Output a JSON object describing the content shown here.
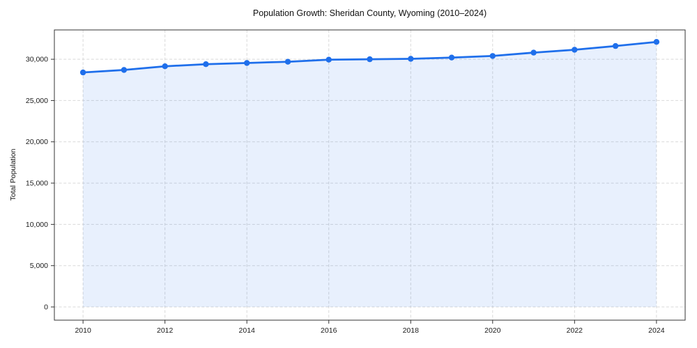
{
  "chart_data": {
    "type": "area",
    "title": "Population Growth: Sheridan County, Wyoming (2010–2024)",
    "xlabel": "",
    "ylabel": "Total Population",
    "x": [
      2010,
      2011,
      2012,
      2013,
      2014,
      2015,
      2016,
      2017,
      2018,
      2019,
      2020,
      2021,
      2022,
      2023,
      2024
    ],
    "values": [
      28400,
      28700,
      29150,
      29400,
      29550,
      29700,
      29950,
      30000,
      30050,
      30200,
      30400,
      30800,
      31150,
      31600,
      32100
    ],
    "series_name": "Total Population",
    "x_ticks": [
      2010,
      2012,
      2014,
      2016,
      2018,
      2020,
      2022,
      2024
    ],
    "x_tick_labels": [
      "2010",
      "2012",
      "2014",
      "2016",
      "2018",
      "2020",
      "2022",
      "2024"
    ],
    "y_ticks": [
      0,
      5000,
      10000,
      15000,
      20000,
      25000,
      30000
    ],
    "y_tick_labels": [
      "0",
      "5,000",
      "10,000",
      "15,000",
      "20,000",
      "25,000",
      "30,000"
    ],
    "xlim": [
      2009.3,
      2024.7
    ],
    "ylim": [
      -1600,
      33550
    ],
    "fill_baseline": 0,
    "grid": true,
    "legend": "none",
    "colors": {
      "line": "#1f6feb",
      "marker": "#1f6feb",
      "fill": "#1f6feb",
      "fill_opacity": 0.1,
      "grid": "#d9d9d9",
      "spine": "#333333",
      "text": "#1a1a1a",
      "background": "#ffffff"
    }
  }
}
